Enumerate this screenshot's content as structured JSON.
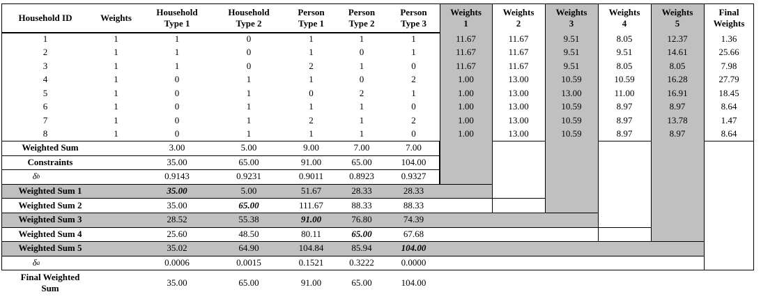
{
  "table": {
    "columns": [
      "Household ID",
      "Weights",
      "Household\nType 1",
      "Household\nType 2",
      "Person\nType 1",
      "Person\nType 2",
      "Person\nType 3",
      "Weights\n1",
      "Weights\n2",
      "Weights\n3",
      "Weights\n4",
      "Weights\n5",
      "Final\nWeights"
    ],
    "rows": [
      [
        "1",
        "1",
        "1",
        "0",
        "1",
        "1",
        "1",
        "11.67",
        "11.67",
        "9.51",
        "8.05",
        "12.37",
        "1.36"
      ],
      [
        "2",
        "1",
        "1",
        "0",
        "1",
        "0",
        "1",
        "11.67",
        "11.67",
        "9.51",
        "9.51",
        "14.61",
        "25.66"
      ],
      [
        "3",
        "1",
        "1",
        "0",
        "2",
        "1",
        "0",
        "11.67",
        "11.67",
        "9.51",
        "8.05",
        "8.05",
        "7.98"
      ],
      [
        "4",
        "1",
        "0",
        "1",
        "1",
        "0",
        "2",
        "1.00",
        "13.00",
        "10.59",
        "10.59",
        "16.28",
        "27.79"
      ],
      [
        "5",
        "1",
        "0",
        "1",
        "0",
        "2",
        "1",
        "1.00",
        "13.00",
        "13.00",
        "11.00",
        "16.91",
        "18.45"
      ],
      [
        "6",
        "1",
        "0",
        "1",
        "1",
        "1",
        "0",
        "1.00",
        "13.00",
        "10.59",
        "8.97",
        "8.97",
        "8.64"
      ],
      [
        "7",
        "1",
        "0",
        "1",
        "2",
        "1",
        "2",
        "1.00",
        "13.00",
        "10.59",
        "8.97",
        "13.78",
        "1.47"
      ],
      [
        "8",
        "1",
        "0",
        "1",
        "1",
        "1",
        "0",
        "1.00",
        "13.00",
        "10.59",
        "8.97",
        "8.97",
        "8.64"
      ]
    ],
    "summary_rows": [
      {
        "label": "Weighted Sum",
        "values": [
          "3.00",
          "5.00",
          "9.00",
          "7.00",
          "7.00"
        ]
      },
      {
        "label": "Constraints",
        "values": [
          "35.00",
          "65.00",
          "91.00",
          "65.00",
          "104.00"
        ]
      },
      {
        "label": {
          "symbol": "δ",
          "subscript": "b"
        },
        "values": [
          "0.9143",
          "0.9231",
          "0.9011",
          "0.8923",
          "0.9327"
        ]
      },
      {
        "label": "Weighted Sum 1",
        "values": [
          "35.00",
          "5.00",
          "51.67",
          "28.33",
          "28.33"
        ]
      },
      {
        "label": "Weighted Sum 2",
        "values": [
          "35.00",
          "65.00",
          "111.67",
          "88.33",
          "88.33"
        ]
      },
      {
        "label": "Weighted Sum 3",
        "values": [
          "28.52",
          "55.38",
          "91.00",
          "76.80",
          "74.39"
        ]
      },
      {
        "label": "Weighted Sum 4",
        "values": [
          "25.60",
          "48.50",
          "80.11",
          "65.00",
          "67.68"
        ]
      },
      {
        "label": "Weighted Sum 5",
        "values": [
          "35.02",
          "64.90",
          "104.84",
          "85.94",
          "104.00"
        ]
      },
      {
        "label": {
          "symbol": "δ",
          "subscript": "a"
        },
        "values": [
          "0.0006",
          "0.0015",
          "0.1521",
          "0.3222",
          "0.0000"
        ]
      },
      {
        "label": "Final Weighted\nSum",
        "values": [
          "35.00",
          "65.00",
          "91.00",
          "65.00",
          "104.00"
        ]
      }
    ]
  }
}
